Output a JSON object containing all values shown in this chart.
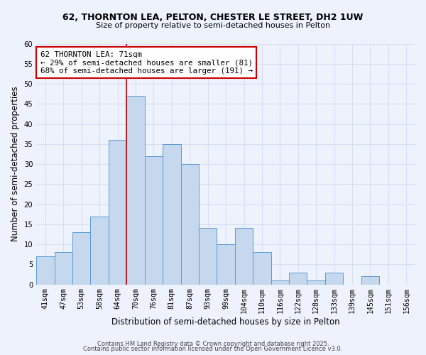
{
  "title1": "62, THORNTON LEA, PELTON, CHESTER LE STREET, DH2 1UW",
  "title2": "Size of property relative to semi-detached houses in Pelton",
  "xlabel": "Distribution of semi-detached houses by size in Pelton",
  "ylabel": "Number of semi-detached properties",
  "bin_labels": [
    "41sqm",
    "47sqm",
    "53sqm",
    "58sqm",
    "64sqm",
    "70sqm",
    "76sqm",
    "81sqm",
    "87sqm",
    "93sqm",
    "99sqm",
    "104sqm",
    "110sqm",
    "116sqm",
    "122sqm",
    "128sqm",
    "133sqm",
    "139sqm",
    "145sqm",
    "151sqm",
    "156sqm"
  ],
  "bar_heights": [
    7,
    8,
    13,
    17,
    36,
    47,
    32,
    35,
    30,
    14,
    10,
    14,
    8,
    1,
    3,
    1,
    3,
    0,
    2,
    0,
    0
  ],
  "bar_color": "#c5d8ee",
  "bar_edge_color": "#5b9bd5",
  "annotation_text": "62 THORNTON LEA: 71sqm\n← 29% of semi-detached houses are smaller (81)\n68% of semi-detached houses are larger (191) →",
  "annotation_box_color": "#ffffff",
  "annotation_box_edge": "#cc0000",
  "vline_color": "#cc0000",
  "ylim": [
    0,
    60
  ],
  "yticks": [
    0,
    5,
    10,
    15,
    20,
    25,
    30,
    35,
    40,
    45,
    50,
    55,
    60
  ],
  "bg_color": "#eef2fc",
  "grid_color": "#d8dff0",
  "footer1": "Contains HM Land Registry data © Crown copyright and database right 2025.",
  "footer2": "Contains public sector information licensed under the Open Government Licence v3.0."
}
